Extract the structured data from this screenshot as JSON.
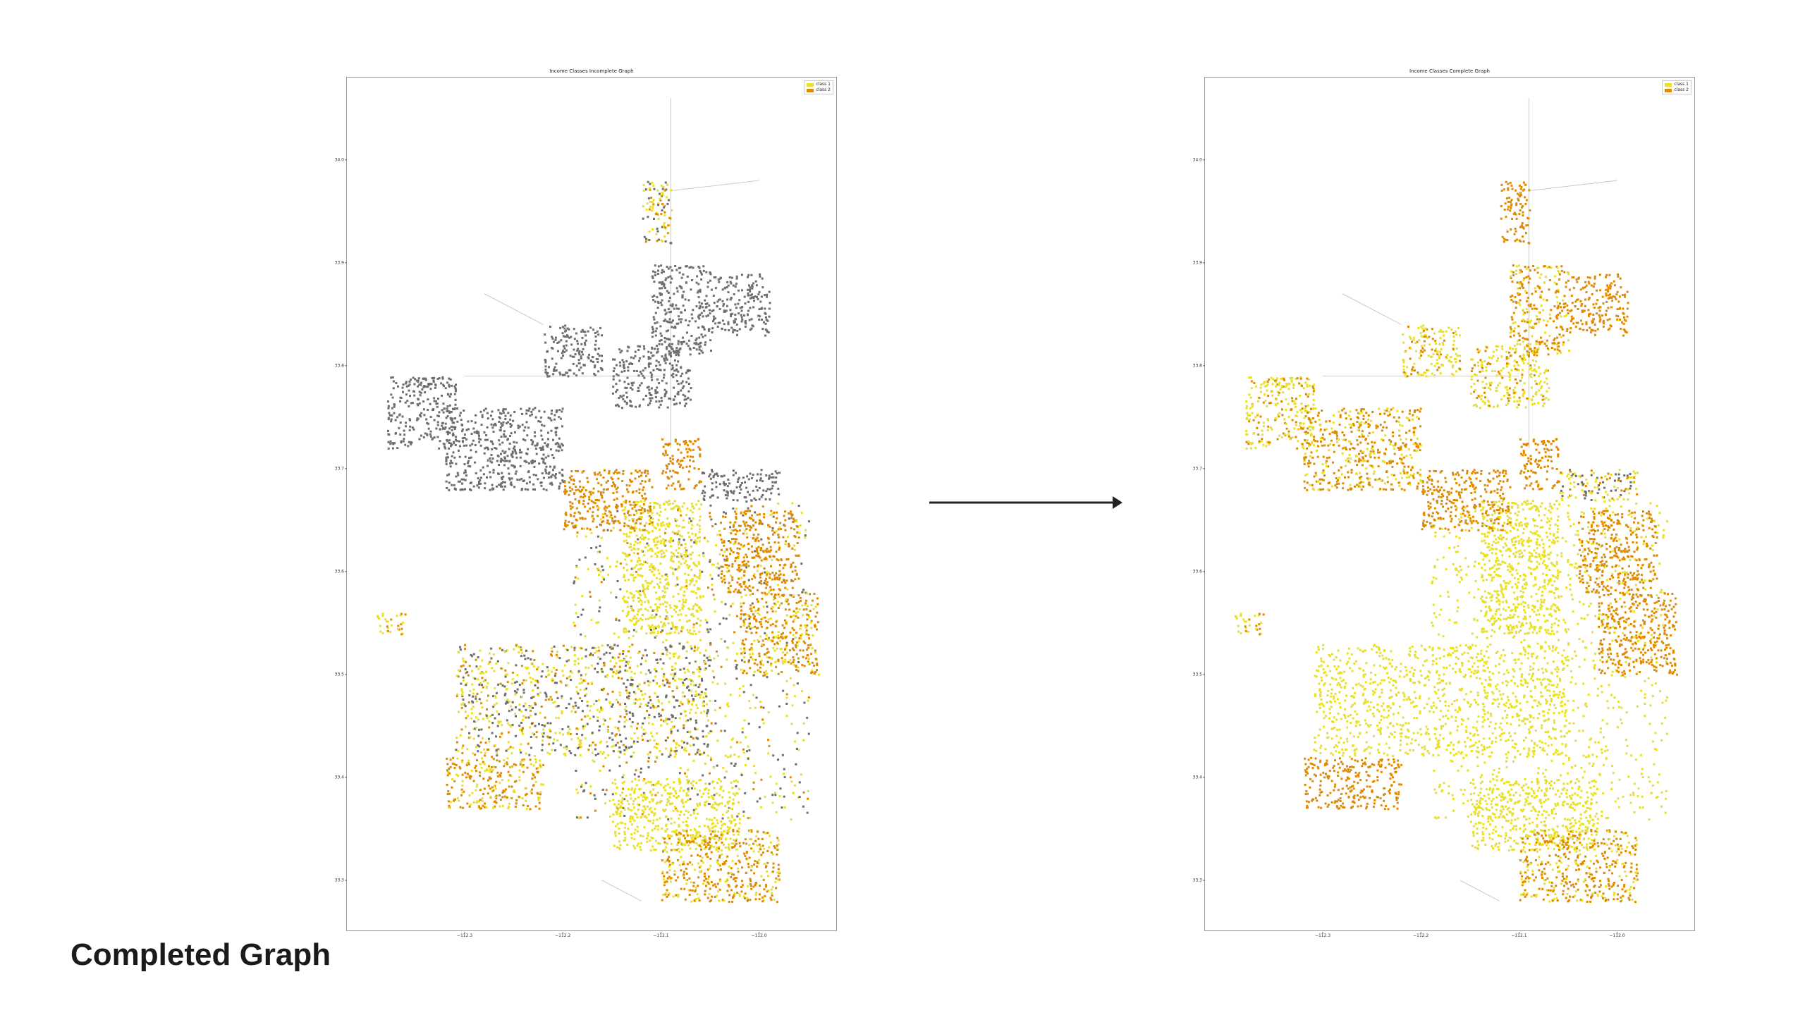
{
  "chart_data": [
    {
      "type": "scatter",
      "title": "Income Classes Incomplete Graph",
      "legend": {
        "placement": "top-right",
        "entries": [
          {
            "label": "class 1",
            "color": "#e8e02a"
          },
          {
            "label": "class 2",
            "color": "#e08a00"
          }
        ]
      },
      "xlim": [
        -112.42,
        -111.92
      ],
      "ylim": [
        33.25,
        34.08
      ],
      "x_ticks": [
        -112.3,
        -112.2,
        -112.1,
        -112.0
      ],
      "x_tick_labels": [
        "−112.3",
        "−112.2",
        "−112.1",
        "−112.0"
      ],
      "y_ticks": [
        33.3,
        33.4,
        33.5,
        33.6,
        33.7,
        33.8,
        33.9,
        34.0
      ],
      "y_tick_labels": [
        "33.3",
        "33.4",
        "33.5",
        "33.6",
        "33.7",
        "33.8",
        "33.9",
        "34.0"
      ],
      "colors": {
        "class1": "#e8e02a",
        "class2": "#e08a00",
        "unlabeled": "#6e6e6e",
        "edge": "#bbbbbb"
      },
      "grid": false
    },
    {
      "type": "scatter",
      "title": "Income Classes Complete Graph",
      "legend": {
        "placement": "top-right",
        "entries": [
          {
            "label": "class 1",
            "color": "#e8e02a"
          },
          {
            "label": "class 2",
            "color": "#e08a00"
          }
        ]
      },
      "xlim": [
        -112.42,
        -111.92
      ],
      "ylim": [
        33.25,
        34.08
      ],
      "x_ticks": [
        -112.3,
        -112.2,
        -112.1,
        -112.0
      ],
      "x_tick_labels": [
        "−112.3",
        "−112.2",
        "−112.1",
        "−112.0"
      ],
      "y_ticks": [
        33.3,
        33.4,
        33.5,
        33.6,
        33.7,
        33.8,
        33.9,
        34.0
      ],
      "y_tick_labels": [
        "33.3",
        "33.4",
        "33.5",
        "33.6",
        "33.7",
        "33.8",
        "33.9",
        "34.0"
      ],
      "colors": {
        "class1": "#e8e02a",
        "class2": "#e08a00",
        "unlabeled": "#6e6e6e",
        "edge": "#bbbbbb"
      },
      "grid": false
    }
  ],
  "regions": [
    {
      "x": [
        -112.19,
        -111.95
      ],
      "y": [
        33.36,
        33.67
      ],
      "incomplete": "mix",
      "complete": "class1"
    },
    {
      "x": [
        -112.31,
        -112.05
      ],
      "y": [
        33.42,
        33.53
      ],
      "incomplete": "mix",
      "complete": "class1"
    },
    {
      "x": [
        -112.14,
        -112.06
      ],
      "y": [
        33.54,
        33.67
      ],
      "incomplete": "class1",
      "complete": "class1"
    },
    {
      "x": [
        -112.2,
        -112.11
      ],
      "y": [
        33.64,
        33.7
      ],
      "incomplete": "class2",
      "complete": "class2"
    },
    {
      "x": [
        -112.04,
        -111.96
      ],
      "y": [
        33.58,
        33.66
      ],
      "incomplete": "class2",
      "complete": "class2"
    },
    {
      "x": [
        -112.02,
        -111.94
      ],
      "y": [
        33.5,
        33.58
      ],
      "incomplete": "mix2",
      "complete": "class2"
    },
    {
      "x": [
        -112.32,
        -112.2
      ],
      "y": [
        33.68,
        33.76
      ],
      "incomplete": "gray",
      "complete": "mix2"
    },
    {
      "x": [
        -112.38,
        -112.31
      ],
      "y": [
        33.72,
        33.79
      ],
      "incomplete": "gray",
      "complete": "mix1"
    },
    {
      "x": [
        -112.11,
        -112.05
      ],
      "y": [
        33.81,
        33.9
      ],
      "incomplete": "gray",
      "complete": "mix2"
    },
    {
      "x": [
        -112.05,
        -111.99
      ],
      "y": [
        33.83,
        33.89
      ],
      "incomplete": "gray",
      "complete": "class2"
    },
    {
      "x": [
        -112.12,
        -112.09
      ],
      "y": [
        33.92,
        33.98
      ],
      "incomplete": "mix",
      "complete": "class2"
    },
    {
      "x": [
        -112.06,
        -111.98
      ],
      "y": [
        33.67,
        33.7
      ],
      "incomplete": "gray",
      "complete": "mix"
    },
    {
      "x": [
        -112.1,
        -112.06
      ],
      "y": [
        33.68,
        33.73
      ],
      "incomplete": "class2",
      "complete": "class2"
    },
    {
      "x": [
        -112.32,
        -112.22
      ],
      "y": [
        33.37,
        33.42
      ],
      "incomplete": "mix2",
      "complete": "class2"
    },
    {
      "x": [
        -112.15,
        -112.02
      ],
      "y": [
        33.33,
        33.4
      ],
      "incomplete": "class1",
      "complete": "class1"
    },
    {
      "x": [
        -112.1,
        -111.98
      ],
      "y": [
        33.28,
        33.35
      ],
      "incomplete": "mix2",
      "complete": "mix2"
    },
    {
      "x": [
        -112.39,
        -112.36
      ],
      "y": [
        33.54,
        33.56
      ],
      "incomplete": "mix1",
      "complete": "mix1"
    },
    {
      "x": [
        -112.22,
        -112.16
      ],
      "y": [
        33.79,
        33.84
      ],
      "incomplete": "gray",
      "complete": "mix1"
    },
    {
      "x": [
        -112.15,
        -112.07
      ],
      "y": [
        33.76,
        33.82
      ],
      "incomplete": "gray",
      "complete": "mix1"
    }
  ],
  "caption": "Completed Graph"
}
